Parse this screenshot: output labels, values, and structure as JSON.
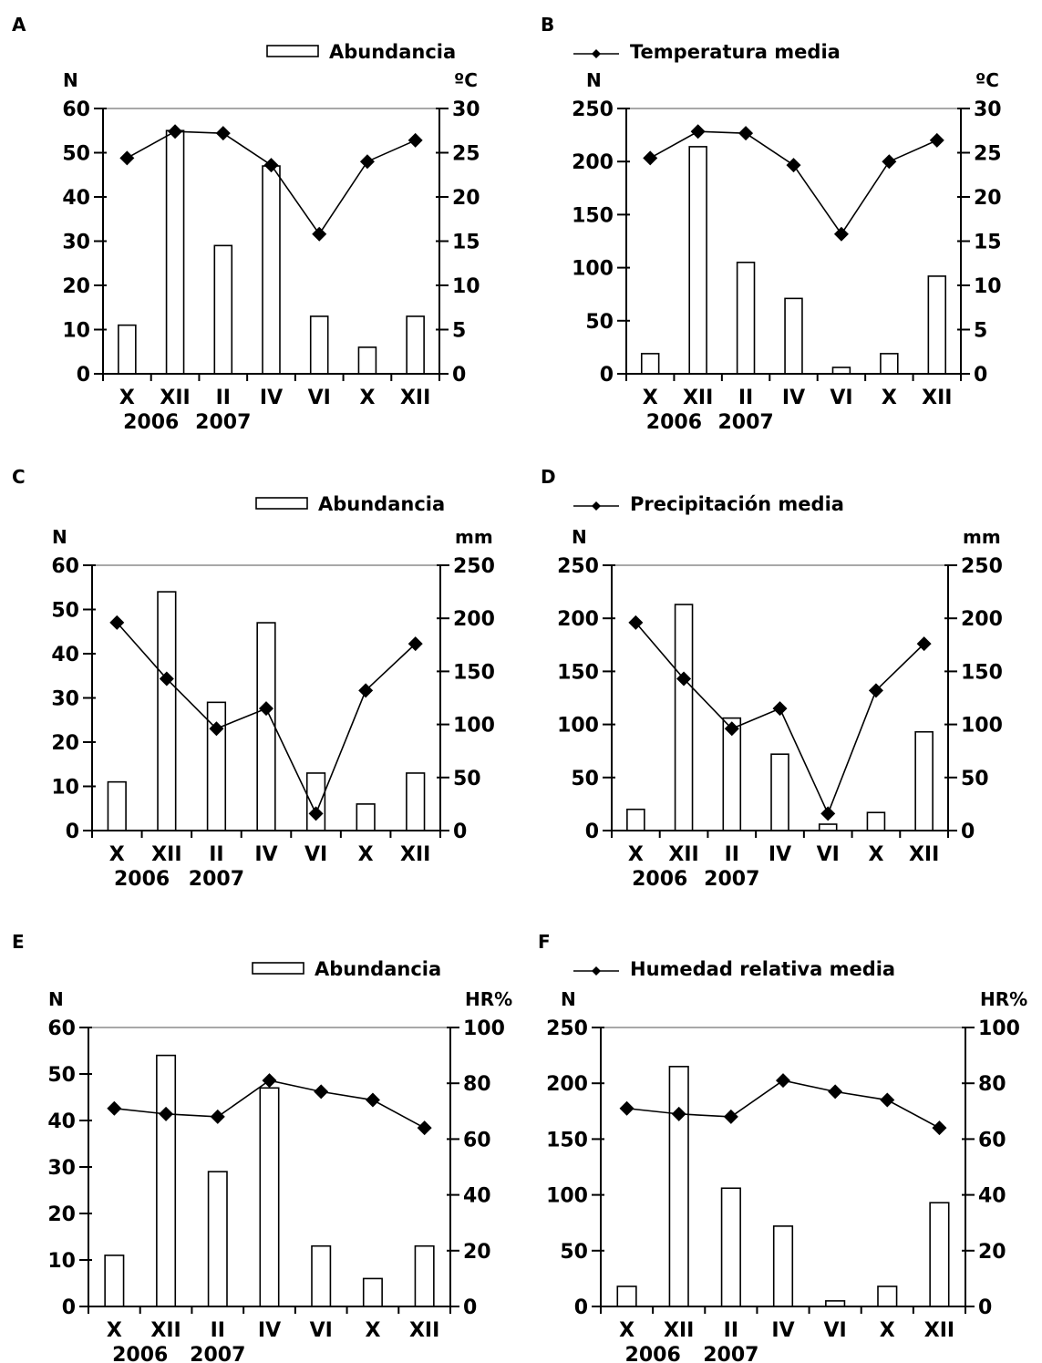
{
  "colors": {
    "ink": "#000000",
    "gridline": "#8c8c8c",
    "bar_fill": "#ffffff",
    "background": "#ffffff"
  },
  "x_categories": [
    "X",
    "XII",
    "II",
    "IV",
    "VI",
    "X",
    "XII"
  ],
  "year_labels": [
    "2006",
    "2007"
  ],
  "chart_data": [
    {
      "panel": "A",
      "type": "bar+line",
      "legend": "Abundancia",
      "legend_symbol": "bar",
      "left_axis": {
        "label": "N",
        "lim": [
          0,
          60
        ],
        "ticks": [
          0,
          10,
          20,
          30,
          40,
          50,
          60
        ]
      },
      "right_axis": {
        "label": "ºC",
        "lim": [
          0,
          30
        ],
        "ticks": [
          0,
          5,
          10,
          15,
          20,
          25,
          30
        ]
      },
      "categories": [
        "X",
        "XII",
        "II",
        "IV",
        "VI",
        "X",
        "XII"
      ],
      "series": [
        {
          "name": "Abundancia",
          "kind": "bar",
          "axis": "left",
          "values": [
            11,
            55,
            29,
            47,
            13,
            6,
            13
          ]
        },
        {
          "kind": "line",
          "axis": "right",
          "values": [
            24.4,
            27.4,
            27.2,
            23.6,
            15.8,
            24.0,
            26.4
          ]
        }
      ]
    },
    {
      "panel": "B",
      "type": "bar+line",
      "legend": "Temperatura media",
      "legend_symbol": "line",
      "left_axis": {
        "label": "N",
        "lim": [
          0,
          250
        ],
        "ticks": [
          0,
          50,
          100,
          150,
          200,
          250
        ]
      },
      "right_axis": {
        "label": "ºC",
        "lim": [
          0,
          30
        ],
        "ticks": [
          0,
          5,
          10,
          15,
          20,
          25,
          30
        ]
      },
      "categories": [
        "X",
        "XII",
        "II",
        "IV",
        "VI",
        "X",
        "XII"
      ],
      "series": [
        {
          "kind": "bar",
          "axis": "left",
          "values": [
            19,
            214,
            105,
            71,
            6,
            19,
            92
          ]
        },
        {
          "name": "Temperatura media",
          "kind": "line",
          "axis": "right",
          "values": [
            24.4,
            27.4,
            27.2,
            23.6,
            15.8,
            24.0,
            26.4
          ]
        }
      ]
    },
    {
      "panel": "C",
      "type": "bar+line",
      "legend": "Abundancia",
      "legend_symbol": "bar",
      "left_axis": {
        "label": "N",
        "lim": [
          0,
          60
        ],
        "ticks": [
          0,
          10,
          20,
          30,
          40,
          50,
          60
        ]
      },
      "right_axis": {
        "label": "mm",
        "lim": [
          0,
          250
        ],
        "ticks": [
          0,
          50,
          100,
          150,
          200,
          250
        ]
      },
      "categories": [
        "X",
        "XII",
        "II",
        "IV",
        "VI",
        "X",
        "XII"
      ],
      "series": [
        {
          "name": "Abundancia",
          "kind": "bar",
          "axis": "left",
          "values": [
            11,
            54,
            29,
            47,
            13,
            6,
            13
          ]
        },
        {
          "kind": "line",
          "axis": "right",
          "values": [
            196,
            143,
            96,
            115,
            16,
            132,
            176
          ]
        }
      ]
    },
    {
      "panel": "D",
      "type": "bar+line",
      "legend": "Precipitación media",
      "legend_symbol": "line",
      "left_axis": {
        "label": "N",
        "lim": [
          0,
          250
        ],
        "ticks": [
          0,
          50,
          100,
          150,
          200,
          250
        ]
      },
      "right_axis": {
        "label": "mm",
        "lim": [
          0,
          250
        ],
        "ticks": [
          0,
          50,
          100,
          150,
          200,
          250
        ]
      },
      "categories": [
        "X",
        "XII",
        "II",
        "IV",
        "VI",
        "X",
        "XII"
      ],
      "series": [
        {
          "kind": "bar",
          "axis": "left",
          "values": [
            20,
            213,
            106,
            72,
            6,
            17,
            93
          ]
        },
        {
          "name": "Precipitación media",
          "kind": "line",
          "axis": "right",
          "values": [
            196,
            143,
            96,
            115,
            16,
            132,
            176
          ]
        }
      ]
    },
    {
      "panel": "E",
      "type": "bar+line",
      "legend": "Abundancia",
      "legend_symbol": "bar",
      "left_axis": {
        "label": "N",
        "lim": [
          0,
          60
        ],
        "ticks": [
          0,
          10,
          20,
          30,
          40,
          50,
          60
        ]
      },
      "right_axis": {
        "label": "HR%",
        "lim": [
          0,
          100
        ],
        "ticks": [
          0,
          20,
          40,
          60,
          80,
          100
        ]
      },
      "categories": [
        "X",
        "XII",
        "II",
        "IV",
        "VI",
        "X",
        "XII"
      ],
      "series": [
        {
          "name": "Abundancia",
          "kind": "bar",
          "axis": "left",
          "values": [
            11,
            54,
            29,
            47,
            13,
            6,
            13
          ]
        },
        {
          "kind": "line",
          "axis": "right",
          "values": [
            71,
            69,
            68,
            81,
            77,
            74,
            64
          ]
        }
      ]
    },
    {
      "panel": "F",
      "type": "bar+line",
      "legend": "Humedad relativa media",
      "legend_symbol": "line",
      "left_axis": {
        "label": "N",
        "lim": [
          0,
          250
        ],
        "ticks": [
          0,
          50,
          100,
          150,
          200,
          250
        ]
      },
      "right_axis": {
        "label": "HR%",
        "lim": [
          0,
          100
        ],
        "ticks": [
          0,
          20,
          40,
          60,
          80,
          100
        ]
      },
      "categories": [
        "X",
        "XII",
        "II",
        "IV",
        "VI",
        "X",
        "XII"
      ],
      "series": [
        {
          "kind": "bar",
          "axis": "left",
          "values": [
            18,
            215,
            106,
            72,
            5,
            18,
            93
          ]
        },
        {
          "name": "Humedad relativa media",
          "kind": "line",
          "axis": "right",
          "values": [
            71,
            69,
            68,
            81,
            77,
            74,
            64
          ]
        }
      ]
    }
  ]
}
